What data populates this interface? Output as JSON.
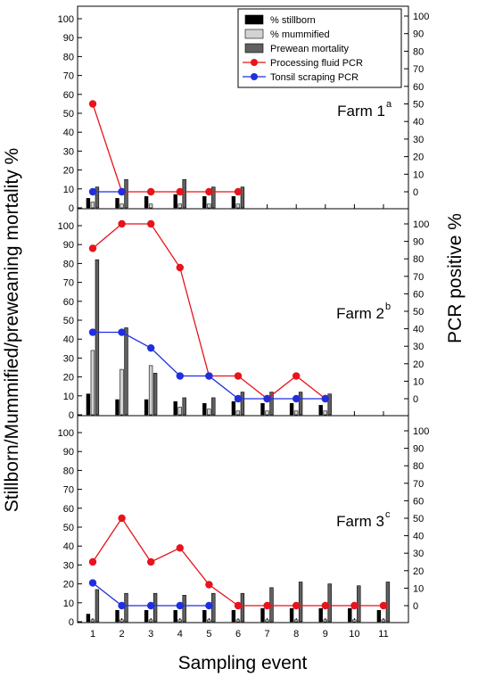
{
  "chart_data": {
    "type": "bar+line",
    "xlabel": "Sampling event",
    "ylabel_left": "Stillborn/Mummified/preweaning mortality %",
    "ylabel_right": "PCR positive %",
    "ylim_left": [
      0,
      100
    ],
    "ylim_right": [
      0,
      100
    ],
    "left_ticks": [
      0,
      10,
      20,
      30,
      40,
      50,
      60,
      70,
      80,
      90,
      100
    ],
    "right_ticks": [
      0,
      10,
      20,
      30,
      40,
      50,
      60,
      70,
      80,
      90,
      100
    ],
    "x_ticks": [
      1,
      2,
      3,
      4,
      5,
      6,
      7,
      8,
      9,
      10,
      11
    ],
    "legend": [
      {
        "name": "% stillborn",
        "color": "#000000",
        "kind": "bar"
      },
      {
        "name": "% mummified",
        "color": "#d3d3d3",
        "kind": "bar"
      },
      {
        "name": "Prewean mortality",
        "color": "#606060",
        "kind": "bar"
      },
      {
        "name": "Processing fluid PCR",
        "color": "#e8131b",
        "kind": "line"
      },
      {
        "name": "Tonsil scraping PCR",
        "color": "#1f2fe0",
        "kind": "line"
      }
    ],
    "panels": [
      {
        "label": "Farm 1",
        "sup": "a",
        "x": [
          1,
          2,
          3,
          4,
          5,
          6
        ],
        "stillborn": [
          5,
          5,
          6,
          7,
          6,
          6
        ],
        "mummified": [
          3,
          2,
          2,
          2,
          2,
          2
        ],
        "prewean": [
          11,
          15,
          0,
          15,
          11,
          11
        ],
        "processing_fluid_pcr": {
          "x": [
            1,
            2,
            3,
            4,
            5,
            6
          ],
          "values": [
            50,
            0,
            0,
            0,
            0,
            0
          ]
        },
        "tonsil_scraping_pcr": {
          "x": [
            1,
            2
          ],
          "values": [
            0,
            0
          ]
        }
      },
      {
        "label": "Farm 2",
        "sup": "b",
        "x": [
          1,
          2,
          3,
          4,
          5,
          6,
          7,
          8,
          9
        ],
        "stillborn": [
          11,
          8,
          8,
          7,
          6,
          7,
          6,
          6,
          5
        ],
        "mummified": [
          34,
          24,
          26,
          4,
          3,
          2,
          2,
          2,
          2
        ],
        "prewean": [
          82,
          46,
          22,
          9,
          9,
          12,
          12,
          12,
          11
        ],
        "processing_fluid_pcr": {
          "x": [
            1,
            2,
            3,
            4,
            5,
            6,
            7,
            8,
            9
          ],
          "values": [
            86,
            100,
            100,
            75,
            13,
            13,
            0,
            13,
            0
          ]
        },
        "tonsil_scraping_pcr": {
          "x": [
            1,
            2,
            3,
            4,
            5,
            6,
            7,
            8,
            9
          ],
          "values": [
            38,
            38,
            29,
            13,
            13,
            0,
            0,
            0,
            0
          ]
        }
      },
      {
        "label": "Farm 3",
        "sup": "c",
        "x": [
          1,
          2,
          3,
          4,
          5,
          6,
          7,
          8,
          9,
          10,
          11
        ],
        "stillborn": [
          4,
          6,
          6,
          6,
          6,
          6,
          7,
          7,
          7,
          7,
          6
        ],
        "mummified": [
          1,
          1,
          1,
          1,
          1,
          1,
          1,
          1,
          1,
          1,
          1
        ],
        "prewean": [
          17,
          15,
          15,
          14,
          15,
          15,
          18,
          21,
          20,
          19,
          21
        ],
        "processing_fluid_pcr": {
          "x": [
            1,
            2,
            3,
            4,
            5,
            6,
            7,
            8,
            9,
            10,
            11
          ],
          "values": [
            25,
            50,
            25,
            33,
            12,
            0,
            0,
            0,
            0,
            0,
            0
          ]
        },
        "tonsil_scraping_pcr": {
          "x": [
            1,
            2,
            3,
            4,
            5
          ],
          "values": [
            13,
            0,
            0,
            0,
            0
          ]
        }
      }
    ]
  }
}
